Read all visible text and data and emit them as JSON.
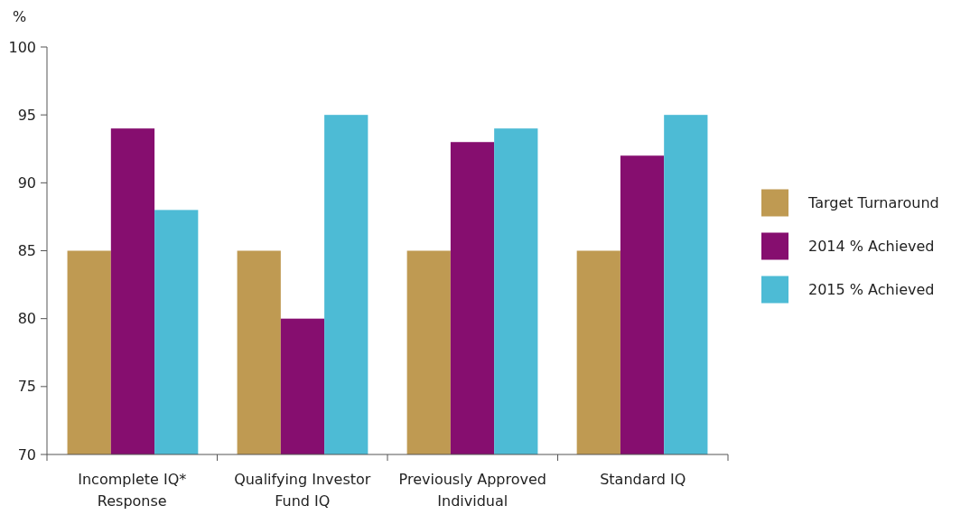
{
  "chart_data": {
    "type": "bar",
    "ylabel": "%",
    "categories": [
      "Incomplete IQ* Response",
      "Qualifying Investor Fund IQ",
      "Previously Approved Individual",
      "Standard IQ"
    ],
    "series": [
      {
        "name": "Target Turnaround",
        "color": "#bf9a52",
        "values": [
          85,
          85,
          85,
          85
        ]
      },
      {
        "name": "2014 % Achieved",
        "color": "#860e6f",
        "values": [
          94,
          80,
          93,
          92
        ]
      },
      {
        "name": "2015 % Achieved",
        "color": "#4dbbd5",
        "values": [
          88,
          95,
          94,
          95
        ]
      }
    ],
    "ylim": [
      70,
      100
    ],
    "yticks": [
      70,
      75,
      80,
      85,
      90,
      95,
      100
    ],
    "grid": false,
    "legend": "right"
  }
}
